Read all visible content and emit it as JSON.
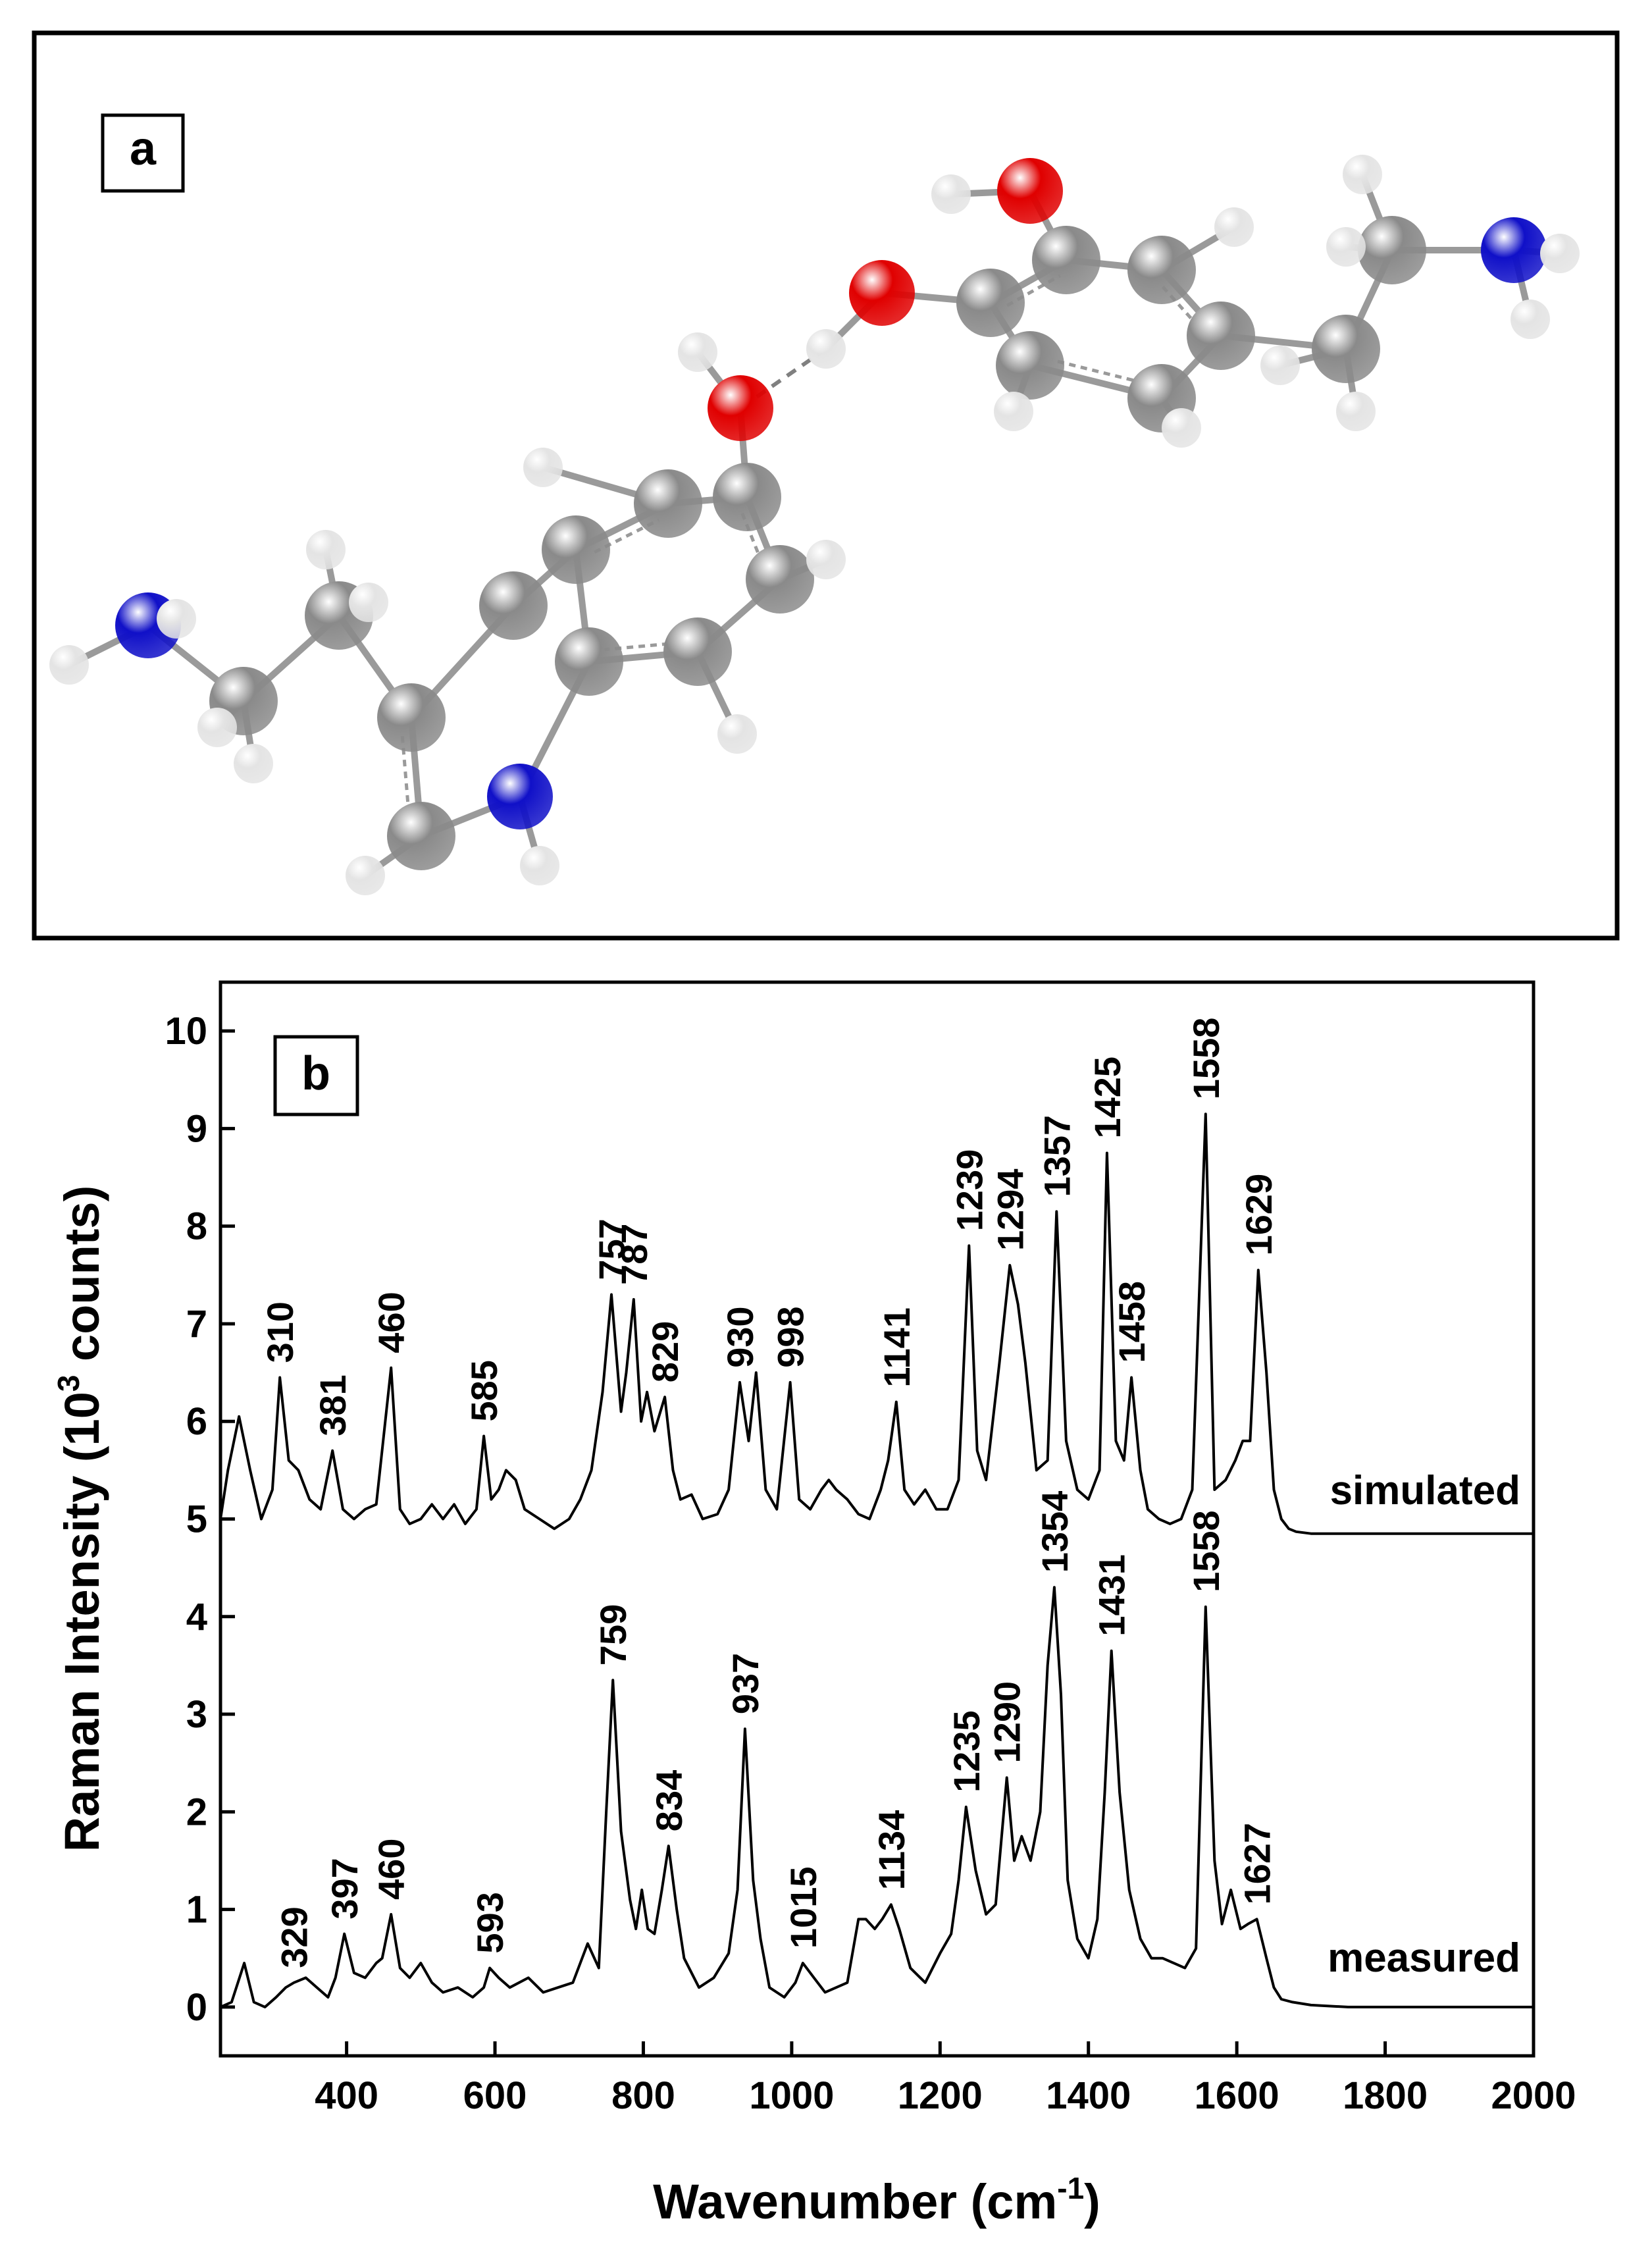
{
  "panel_a": {
    "label": "a",
    "colors": {
      "carbon": "#8a8a8a",
      "hydrogen": "#e4e4e4",
      "oxygen": "#e00000",
      "nitrogen": "#1010c8",
      "bond": "#9a9a9a"
    }
  },
  "chart_data": {
    "type": "line",
    "panel_label": "b",
    "xlabel_main": "Wavenumber (cm",
    "xlabel_sup": "-1",
    "xlabel_tail": ")",
    "ylabel_main": "Raman Intensity (10",
    "ylabel_sup": "3",
    "ylabel_tail": " counts)",
    "xlim": [
      230,
      2000
    ],
    "ylim": [
      -0.5,
      10.5
    ],
    "x_ticks": [
      400,
      600,
      800,
      1000,
      1200,
      1400,
      1600,
      1800,
      2000
    ],
    "y_ticks": [
      0,
      1,
      2,
      3,
      4,
      5,
      6,
      7,
      8,
      9,
      10
    ],
    "grid": false,
    "legend": "none",
    "series": [
      {
        "name": "simulated",
        "baseline": 4.85,
        "x": [
          230,
          240,
          255,
          270,
          285,
          300,
          310,
          322,
          335,
          350,
          365,
          381,
          395,
          410,
          425,
          440,
          460,
          472,
          485,
          500,
          515,
          530,
          545,
          560,
          575,
          585,
          595,
          605,
          615,
          628,
          640,
          660,
          680,
          700,
          715,
          730,
          745,
          757,
          770,
          777,
          787,
          797,
          805,
          815,
          829,
          840,
          850,
          865,
          880,
          900,
          915,
          930,
          942,
          952,
          965,
          980,
          998,
          1010,
          1025,
          1040,
          1050,
          1060,
          1075,
          1090,
          1105,
          1120,
          1130,
          1141,
          1152,
          1165,
          1180,
          1195,
          1210,
          1225,
          1239,
          1250,
          1262,
          1280,
          1294,
          1305,
          1315,
          1330,
          1345,
          1357,
          1370,
          1385,
          1400,
          1415,
          1425,
          1437,
          1448,
          1458,
          1470,
          1480,
          1495,
          1510,
          1525,
          1540,
          1558,
          1570,
          1585,
          1598,
          1608,
          1618,
          1629,
          1640,
          1650,
          1660,
          1670,
          1680,
          1700,
          1750,
          1800,
          1900,
          2000
        ],
        "y": [
          5.0,
          5.5,
          6.05,
          5.5,
          5.0,
          5.3,
          6.45,
          5.6,
          5.5,
          5.2,
          5.1,
          5.7,
          5.1,
          5.0,
          5.1,
          5.15,
          6.55,
          5.1,
          4.95,
          5.0,
          5.15,
          5.0,
          5.15,
          4.95,
          5.1,
          5.85,
          5.2,
          5.3,
          5.5,
          5.4,
          5.1,
          5.0,
          4.9,
          5.0,
          5.2,
          5.5,
          6.3,
          7.3,
          6.1,
          6.5,
          7.25,
          6.0,
          6.3,
          5.9,
          6.25,
          5.5,
          5.2,
          5.25,
          5.0,
          5.05,
          5.3,
          6.4,
          5.8,
          6.5,
          5.3,
          5.1,
          6.4,
          5.2,
          5.1,
          5.3,
          5.4,
          5.3,
          5.2,
          5.05,
          5.0,
          5.3,
          5.6,
          6.2,
          5.3,
          5.15,
          5.3,
          5.1,
          5.1,
          5.4,
          7.8,
          5.7,
          5.4,
          6.6,
          7.6,
          7.2,
          6.6,
          5.5,
          5.6,
          8.15,
          5.8,
          5.3,
          5.2,
          5.5,
          8.75,
          5.8,
          5.6,
          6.45,
          5.5,
          5.1,
          5.0,
          4.95,
          5.0,
          5.3,
          9.15,
          5.3,
          5.4,
          5.6,
          5.8,
          5.8,
          7.55,
          6.5,
          5.3,
          5.0,
          4.9,
          4.87,
          4.85,
          4.85,
          4.85,
          4.85,
          4.85
        ]
      },
      {
        "name": "measured",
        "baseline": 0.0,
        "x": [
          230,
          245,
          262,
          275,
          290,
          305,
          318,
          329,
          345,
          360,
          375,
          385,
          397,
          410,
          425,
          440,
          448,
          460,
          472,
          485,
          500,
          515,
          530,
          550,
          570,
          585,
          593,
          605,
          620,
          645,
          665,
          685,
          705,
          725,
          740,
          750,
          759,
          770,
          782,
          790,
          798,
          806,
          815,
          825,
          834,
          845,
          855,
          875,
          895,
          915,
          927,
          937,
          948,
          958,
          970,
          990,
          1005,
          1015,
          1030,
          1045,
          1060,
          1075,
          1090,
          1100,
          1112,
          1122,
          1134,
          1145,
          1160,
          1180,
          1200,
          1215,
          1225,
          1235,
          1248,
          1262,
          1275,
          1290,
          1300,
          1310,
          1322,
          1335,
          1345,
          1354,
          1363,
          1372,
          1385,
          1400,
          1412,
          1422,
          1431,
          1442,
          1455,
          1470,
          1485,
          1500,
          1515,
          1530,
          1545,
          1558,
          1570,
          1580,
          1592,
          1605,
          1615,
          1627,
          1640,
          1650,
          1660,
          1675,
          1700,
          1750,
          1800,
          1850,
          1900,
          1950,
          2000
        ],
        "y": [
          0.0,
          0.05,
          0.45,
          0.05,
          0.0,
          0.1,
          0.2,
          0.25,
          0.3,
          0.2,
          0.1,
          0.3,
          0.75,
          0.35,
          0.3,
          0.45,
          0.5,
          0.95,
          0.4,
          0.3,
          0.45,
          0.25,
          0.15,
          0.2,
          0.1,
          0.2,
          0.4,
          0.3,
          0.2,
          0.3,
          0.15,
          0.2,
          0.25,
          0.65,
          0.4,
          2.0,
          3.35,
          1.8,
          1.1,
          0.8,
          1.2,
          0.8,
          0.75,
          1.2,
          1.65,
          1.0,
          0.5,
          0.2,
          0.3,
          0.55,
          1.2,
          2.85,
          1.3,
          0.7,
          0.2,
          0.1,
          0.25,
          0.45,
          0.3,
          0.15,
          0.2,
          0.25,
          0.9,
          0.9,
          0.8,
          0.9,
          1.05,
          0.8,
          0.4,
          0.25,
          0.55,
          0.75,
          1.3,
          2.05,
          1.4,
          0.95,
          1.05,
          2.35,
          1.5,
          1.75,
          1.5,
          2.0,
          3.5,
          4.3,
          3.2,
          1.3,
          0.7,
          0.5,
          0.9,
          2.2,
          3.65,
          2.2,
          1.2,
          0.7,
          0.5,
          0.5,
          0.45,
          0.4,
          0.6,
          4.1,
          1.5,
          0.85,
          1.2,
          0.8,
          0.85,
          0.9,
          0.5,
          0.2,
          0.08,
          0.05,
          0.02,
          0.0,
          0.0,
          0.0,
          0.0,
          0.0,
          0.0
        ]
      }
    ],
    "peak_labels": {
      "simulated": [
        {
          "x": 310,
          "text": "310"
        },
        {
          "x": 381,
          "text": "381"
        },
        {
          "x": 460,
          "text": "460"
        },
        {
          "x": 585,
          "text": "585"
        },
        {
          "x": 757,
          "text": "757"
        },
        {
          "x": 787,
          "text": "787"
        },
        {
          "x": 829,
          "text": "829"
        },
        {
          "x": 930,
          "text": "930"
        },
        {
          "x": 998,
          "text": "998"
        },
        {
          "x": 1141,
          "text": "1141"
        },
        {
          "x": 1239,
          "text": "1239"
        },
        {
          "x": 1294,
          "text": "1294"
        },
        {
          "x": 1357,
          "text": "1357"
        },
        {
          "x": 1425,
          "text": "1425"
        },
        {
          "x": 1458,
          "text": "1458"
        },
        {
          "x": 1558,
          "text": "1558"
        },
        {
          "x": 1629,
          "text": "1629"
        }
      ],
      "measured": [
        {
          "x": 329,
          "text": "329"
        },
        {
          "x": 397,
          "text": "397"
        },
        {
          "x": 460,
          "text": "460"
        },
        {
          "x": 593,
          "text": "593"
        },
        {
          "x": 759,
          "text": "759"
        },
        {
          "x": 834,
          "text": "834"
        },
        {
          "x": 937,
          "text": "937"
        },
        {
          "x": 1015,
          "text": "1015"
        },
        {
          "x": 1134,
          "text": "1134"
        },
        {
          "x": 1235,
          "text": "1235"
        },
        {
          "x": 1290,
          "text": "1290"
        },
        {
          "x": 1354,
          "text": "1354"
        },
        {
          "x": 1431,
          "text": "1431"
        },
        {
          "x": 1558,
          "text": "1558"
        },
        {
          "x": 1627,
          "text": "1627"
        }
      ]
    }
  }
}
